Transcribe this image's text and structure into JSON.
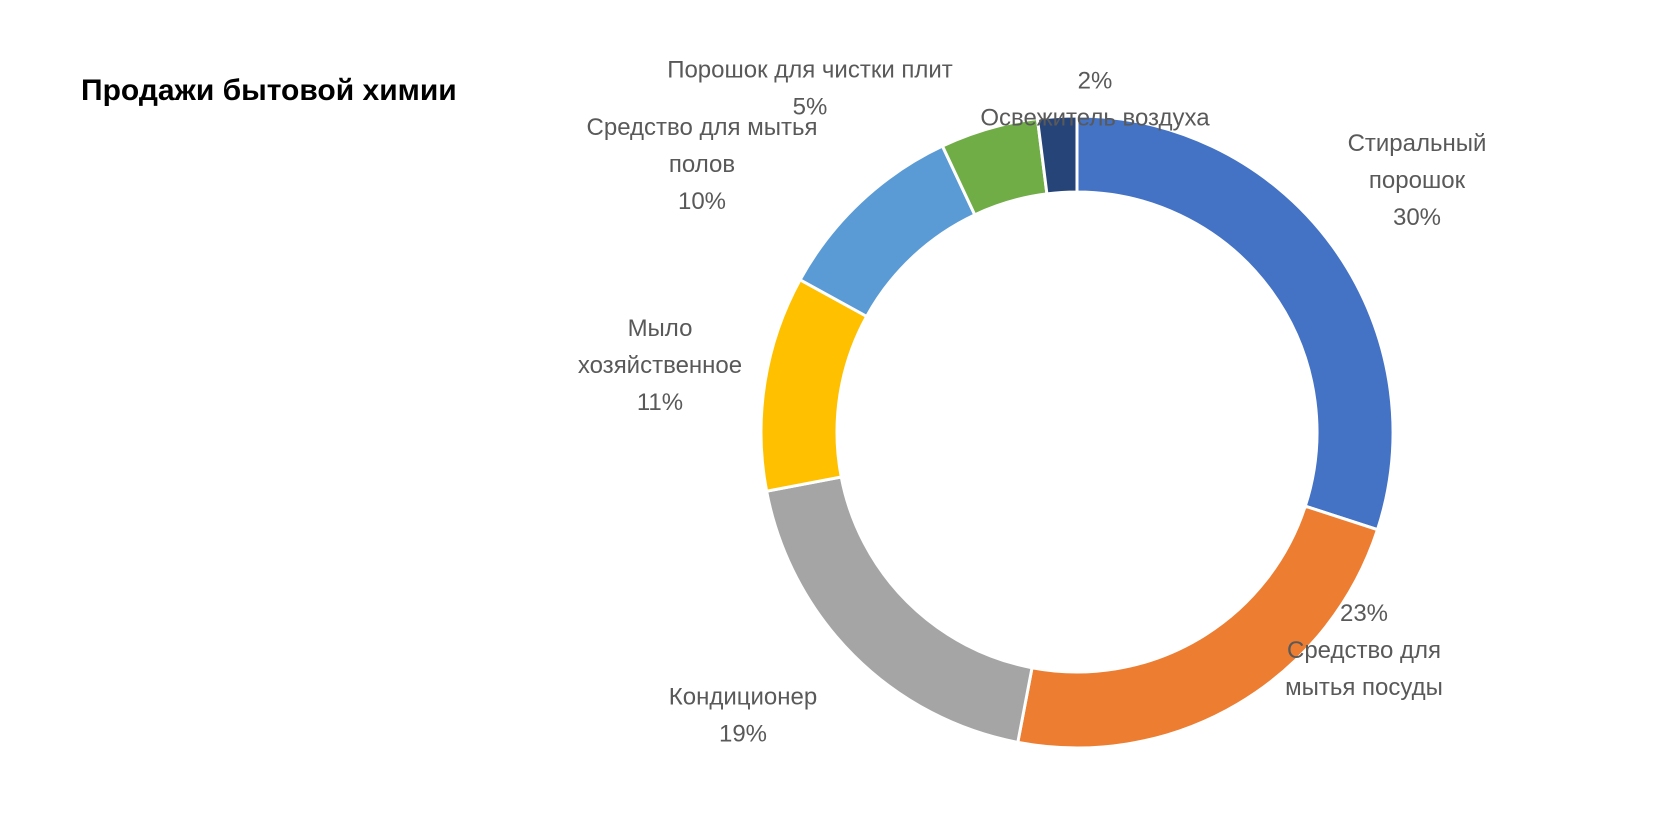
{
  "chart_data": {
    "type": "pie",
    "variant": "donut",
    "title": "Продажи бытовой химии",
    "legend": "none",
    "slices": [
      {
        "name": "Стиральный порошок",
        "value": 30,
        "label_lines": [
          "Стиральный",
          "порошок",
          "30%"
        ],
        "color": "#4472C4"
      },
      {
        "name": "Средство для мытья посуды",
        "value": 23,
        "label_lines": [
          "23%",
          "Средство для",
          "мытья посуды"
        ],
        "color": "#ED7D31"
      },
      {
        "name": "Кондиционер",
        "value": 19,
        "label_lines": [
          "Кондиционер",
          "19%"
        ],
        "color": "#A5A5A5"
      },
      {
        "name": "Мыло хозяйственное",
        "value": 11,
        "label_lines": [
          "Мыло",
          "хозяйственное",
          "11%"
        ],
        "color": "#FFC000"
      },
      {
        "name": "Средство для мытья полов",
        "value": 10,
        "label_lines": [
          "Средство для мытья",
          "полов",
          "10%"
        ],
        "color": "#5B9BD5"
      },
      {
        "name": "Порошок для чистки плит",
        "value": 5,
        "label_lines": [
          "Порошок для чистки плит",
          "5%"
        ],
        "color": "#70AD47"
      },
      {
        "name": "Освежитель воздуха",
        "value": 2,
        "label_lines": [
          "2%",
          "Освежитель воздуха"
        ],
        "color": "#264478"
      }
    ]
  }
}
